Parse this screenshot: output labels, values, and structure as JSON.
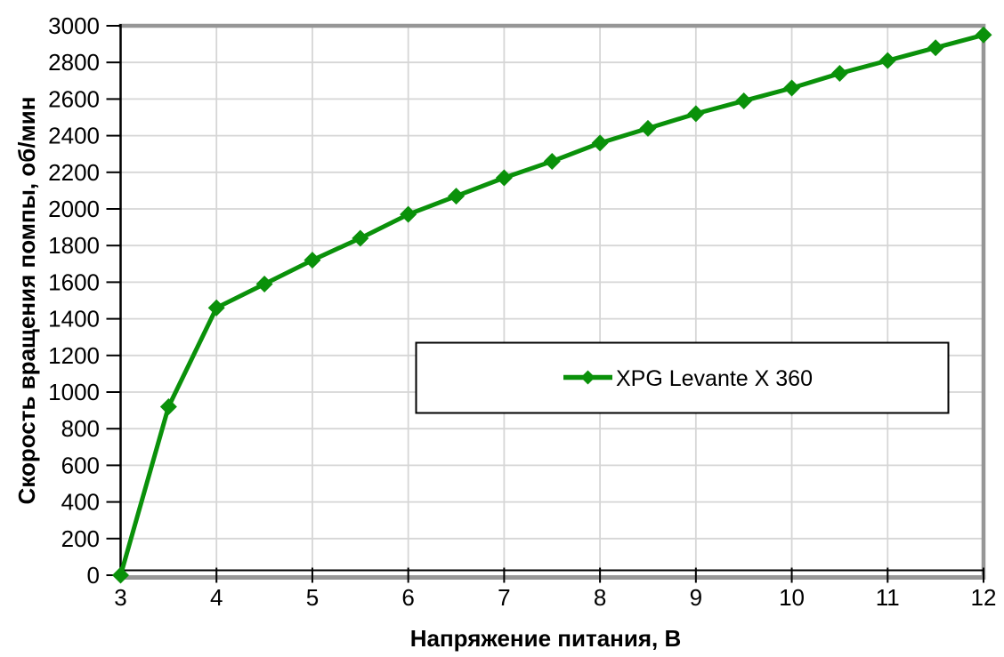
{
  "chart_data": {
    "type": "line",
    "xlabel": "Напряжение питания, В",
    "ylabel": "Скорость вращения помпы, об/мин",
    "x": [
      3,
      3.5,
      4,
      4.5,
      5,
      5.5,
      6,
      6.5,
      7,
      7.5,
      8,
      8.5,
      9,
      9.5,
      10,
      10.5,
      11,
      11.5,
      12
    ],
    "series": [
      {
        "name": "XPG Levante X 360",
        "color": "#0a910a",
        "marker": "diamond",
        "values": [
          0,
          920,
          1460,
          1590,
          1720,
          1840,
          1970,
          2070,
          2170,
          2260,
          2360,
          2440,
          2520,
          2590,
          2660,
          2740,
          2810,
          2880,
          2950
        ]
      }
    ],
    "xlim": [
      3,
      12
    ],
    "ylim": [
      0,
      3000
    ],
    "x_ticks": [
      3,
      4,
      5,
      6,
      7,
      8,
      9,
      10,
      11,
      12
    ],
    "y_tick_step": 200,
    "grid": true,
    "legend_position": "inside-center",
    "colors": {
      "gridline": "#d6d6d6",
      "plot_border": "#969696",
      "axis_line": "#000000",
      "tick": "#000000",
      "background": "#ffffff",
      "legend_border": "#000000",
      "legend_fill": "#ffffff"
    }
  }
}
